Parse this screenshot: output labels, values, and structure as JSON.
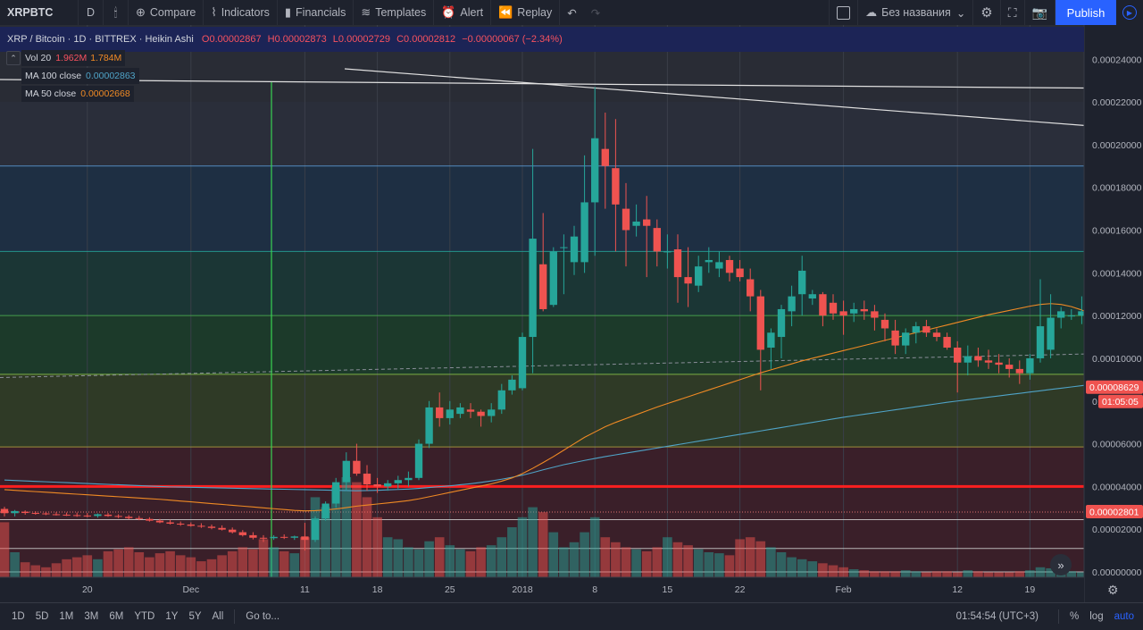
{
  "toolbar": {
    "symbol": "XRPBTC",
    "interval": "D",
    "compare": "Compare",
    "indicators": "Indicators",
    "financials": "Financials",
    "templates": "Templates",
    "alert": "Alert",
    "replay": "Replay",
    "layout_name": "Без названия",
    "publish": "Publish"
  },
  "legend": {
    "pair": "XRP / Bitcoin · 1D · BITTREX · Heikin Ashi",
    "o": "O0.00002867",
    "h": "H0.00002873",
    "l": "L0.00002729",
    "c": "C0.00002812",
    "chg": "−0.00000067 (−2.34%)",
    "vol_name": "Vol 20",
    "vol_v1": "1.962M",
    "vol_v2": "1.784M",
    "ma100_name": "MA 100 close",
    "ma100_val": "0.00002863",
    "ma50_name": "MA 50 close",
    "ma50_val": "0.00002668"
  },
  "bottombar": {
    "ranges": [
      "1D",
      "5D",
      "1M",
      "3M",
      "6M",
      "YTD",
      "1Y",
      "5Y",
      "All"
    ],
    "goto": "Go to...",
    "time": "01:54:54 (UTC+3)",
    "pct": "%",
    "log": "log",
    "auto": "auto"
  },
  "colors": {
    "up": "#26a69a",
    "down": "#ef5350",
    "ma100": "#4fa3c7",
    "ma50": "#f08a24",
    "accent": "#2962ff"
  },
  "chart_data": {
    "type": "candlestick",
    "ylim": [
      -2.5e-06,
      0.000256
    ],
    "yticks": [
      "0.00024000",
      "0.00022000",
      "0.00020000",
      "0.00018000",
      "0.00016000",
      "0.00014000",
      "0.00012000",
      "0.00010000",
      "0.00008000",
      "0.00006000",
      "0.00004000",
      "0.00002000",
      "0.00000000"
    ],
    "yticks_val": [
      0.00024,
      0.00022,
      0.0002,
      0.00018,
      0.00016,
      0.00014,
      0.00012,
      0.0001,
      8e-05,
      6e-05,
      4e-05,
      2e-05,
      0.0
    ],
    "xticks": [
      {
        "label": "20",
        "i": 8
      },
      {
        "label": "Dec",
        "i": 18
      },
      {
        "label": "11",
        "i": 29
      },
      {
        "label": "18",
        "i": 36
      },
      {
        "label": "25",
        "i": 43
      },
      {
        "label": "2018",
        "i": 50
      },
      {
        "label": "8",
        "i": 57
      },
      {
        "label": "15",
        "i": 64
      },
      {
        "label": "22",
        "i": 71
      },
      {
        "label": "Feb",
        "i": 81
      },
      {
        "label": "12",
        "i": 92
      },
      {
        "label": "19",
        "i": 99
      }
    ],
    "last_price_label": "0.00008629",
    "last_price": 8.629e-05,
    "countdown": "01:05:05",
    "level_label": "0.00002801",
    "level_price": 2.801e-05,
    "fib_levels": [
      0.00019,
      0.00015,
      0.00012,
      9.25e-05,
      5.85e-05,
      4e-05,
      2.45e-05,
      1.1e-05,
      0.0
    ],
    "zones": [
      {
        "from": 0.00022,
        "to": 0.00019,
        "color": "#2a2e3a"
      },
      {
        "from": 0.00019,
        "to": 0.00015,
        "color": "#1e2f43"
      },
      {
        "from": 0.00015,
        "to": 0.00012,
        "color": "#1b3635"
      },
      {
        "from": 0.00012,
        "to": 9.25e-05,
        "color": "#1c3a2a"
      },
      {
        "from": 9.25e-05,
        "to": 5.85e-05,
        "color": "#2f3a26"
      },
      {
        "from": 5.85e-05,
        "to": -2.5e-06,
        "color": "#3a1f29"
      }
    ],
    "ohlc": [
      [
        2.95e-05,
        3.05e-05,
        2.6e-05,
        2.75e-05
      ],
      [
        2.75e-05,
        2.9e-05,
        2.6e-05,
        2.85e-05
      ],
      [
        2.82e-05,
        2.88e-05,
        2.68e-05,
        2.76e-05
      ],
      [
        2.76e-05,
        2.84e-05,
        2.68e-05,
        2.74e-05
      ],
      [
        2.74e-05,
        2.82e-05,
        2.66e-05,
        2.7e-05
      ],
      [
        2.7e-05,
        2.8e-05,
        2.64e-05,
        2.68e-05
      ],
      [
        2.68e-05,
        2.78e-05,
        2.62e-05,
        2.66e-05
      ],
      [
        2.66e-05,
        2.78e-05,
        2.58e-05,
        2.64e-05
      ],
      [
        2.64e-05,
        2.76e-05,
        2.56e-05,
        2.62e-05
      ],
      [
        2.62e-05,
        2.74e-05,
        2.54e-05,
        2.7e-05
      ],
      [
        2.68e-05,
        2.76e-05,
        2.58e-05,
        2.62e-05
      ],
      [
        2.62e-05,
        2.7e-05,
        2.52e-05,
        2.58e-05
      ],
      [
        2.58e-05,
        2.66e-05,
        2.46e-05,
        2.52e-05
      ],
      [
        2.52e-05,
        2.62e-05,
        2.42e-05,
        2.48e-05
      ],
      [
        2.48e-05,
        2.56e-05,
        2.36e-05,
        2.4e-05
      ],
      [
        2.4e-05,
        2.48e-05,
        2.28e-05,
        2.32e-05
      ],
      [
        2.32e-05,
        2.44e-05,
        2.22e-05,
        2.26e-05
      ],
      [
        2.26e-05,
        2.36e-05,
        2.16e-05,
        2.22e-05
      ],
      [
        2.22e-05,
        2.32e-05,
        2.12e-05,
        2.16e-05
      ],
      [
        2.16e-05,
        2.28e-05,
        2.06e-05,
        2.12e-05
      ],
      [
        2.12e-05,
        2.22e-05,
        2e-05,
        2.06e-05
      ],
      [
        2.06e-05,
        2.18e-05,
        1.94e-05,
        1.98e-05
      ],
      [
        1.98e-05,
        2.08e-05,
        1.8e-05,
        1.86e-05
      ],
      [
        1.86e-05,
        1.96e-05,
        1.66e-05,
        1.72e-05
      ],
      [
        1.72e-05,
        1.86e-05,
        1.52e-05,
        1.6e-05
      ],
      [
        1.6e-05,
        1.72e-05,
        1.4e-05,
        1.58e-05
      ],
      [
        1.58e-05,
        1.72e-05,
        1.5e-05,
        1.64e-05
      ],
      [
        1.64e-05,
        1.76e-05,
        1.54e-05,
        1.6e-05
      ],
      [
        1.6e-05,
        1.7e-05,
        1.5e-05,
        1.66e-05
      ],
      [
        1.66e-05,
        2.3e-05,
        1e-05,
        1.5e-05
      ],
      [
        1.5e-05,
        2.6e-05,
        1.4e-05,
        2.5e-05
      ],
      [
        2.5e-05,
        3.3e-05,
        2.4e-05,
        3.2e-05
      ],
      [
        3.2e-05,
        4.4e-05,
        3e-05,
        4.2e-05
      ],
      [
        4.2e-05,
        5.6e-05,
        3.8e-05,
        5.2e-05
      ],
      [
        5.2e-05,
        6e-05,
        4.5e-05,
        4.6e-05
      ],
      [
        4.6e-05,
        5e-05,
        3.8e-05,
        4.1e-05
      ],
      [
        4.1e-05,
        4.4e-05,
        3.7e-05,
        4e-05
      ],
      [
        4e-05,
        4.3e-05,
        3.8e-05,
        4.15e-05
      ],
      [
        4.15e-05,
        4.5e-05,
        3.9e-05,
        4.3e-05
      ],
      [
        4.3e-05,
        4.7e-05,
        4e-05,
        4.4e-05
      ],
      [
        4.4e-05,
        6.2e-05,
        4.3e-05,
        6e-05
      ],
      [
        6e-05,
        8e-05,
        5.8e-05,
        7.7e-05
      ],
      [
        7.7e-05,
        8.4e-05,
        6.8e-05,
        7.2e-05
      ],
      [
        7.2e-05,
        8e-05,
        6.9e-05,
        7.6e-05
      ],
      [
        7.4e-05,
        7.9e-05,
        7.2e-05,
        7.7e-05
      ],
      [
        7.6e-05,
        7.9e-05,
        7.2e-05,
        7.5e-05
      ],
      [
        7.5e-05,
        7.6e-05,
        6.8e-05,
        7.3e-05
      ],
      [
        7.3e-05,
        7.9e-05,
        7e-05,
        7.6e-05
      ],
      [
        7.6e-05,
        8.8e-05,
        7.4e-05,
        8.5e-05
      ],
      [
        8.5e-05,
        9.2e-05,
        8.3e-05,
        9e-05
      ],
      [
        8.6e-05,
        0.000112,
        8.5e-05,
        0.00011
      ],
      [
        0.00011,
        0.000198,
        9.3e-05,
        0.000156
      ],
      [
        0.000144,
        0.000168,
        0.000122,
        0.000123
      ],
      [
        0.000125,
        0.000152,
        0.000124,
        0.00015
      ],
      [
        0.000152,
        0.000158,
        0.00013,
        0.000152
      ],
      [
        0.000145,
        0.000162,
        0.000139,
        0.000157
      ],
      [
        0.000145,
        0.000195,
        0.00014,
        0.000173
      ],
      [
        0.000173,
        0.000227,
        0.000148,
        0.000203
      ],
      [
        0.000198,
        0.000215,
        0.00017,
        0.00019
      ],
      [
        0.000189,
        0.000212,
        0.00015,
        0.000172
      ],
      [
        0.00017,
        0.000182,
        0.000143,
        0.00016
      ],
      [
        0.000162,
        0.000172,
        0.000157,
        0.000164
      ],
      [
        0.000165,
        0.000176,
        0.000138,
        0.000162
      ],
      [
        0.000161,
        0.000165,
        0.000143,
        0.00015
      ],
      [
        0.00015,
        0.000158,
        0.000142,
        0.00015
      ],
      [
        0.000151,
        0.000158,
        0.000126,
        0.000138
      ],
      [
        0.000138,
        0.000152,
        0.000124,
        0.000135
      ],
      [
        0.000134,
        0.000148,
        0.000131,
        0.000143
      ],
      [
        0.000145,
        0.000152,
        0.00014,
        0.000146
      ],
      [
        0.000142,
        0.00015,
        0.000138,
        0.000145
      ],
      [
        0.000146,
        0.000148,
        0.000136,
        0.00014
      ],
      [
        0.000142,
        0.000146,
        0.000136,
        0.000138
      ],
      [
        0.000137,
        0.000142,
        0.000122,
        0.000129
      ],
      [
        0.000129,
        0.000132,
        8.5e-05,
        0.000104
      ],
      [
        0.000105,
        0.000114,
        9.5e-05,
        0.000112
      ],
      [
        0.00011,
        0.000125,
        0.0001,
        0.000123
      ],
      [
        0.000122,
        0.000134,
        0.000115,
        0.000129
      ],
      [
        0.00013,
        0.000148,
        0.00012,
        0.000141
      ],
      [
        0.000128,
        0.000132,
        0.000125,
        0.00013
      ],
      [
        0.00013,
        0.000131,
        0.000115,
        0.00012
      ],
      [
        0.000126,
        0.00013,
        0.000118,
        0.000121
      ],
      [
        0.000122,
        0.000127,
        0.000111,
        0.00012
      ],
      [
        0.000121,
        0.000126,
        0.000117,
        0.000123
      ],
      [
        0.000123,
        0.000127,
        0.000118,
        0.000122
      ],
      [
        0.000122,
        0.000125,
        0.000113,
        0.000119
      ],
      [
        0.000118,
        0.000121,
        0.000108,
        0.000114
      ],
      [
        0.000113,
        0.000118,
        0.000102,
        0.000106
      ],
      [
        0.000106,
        0.000114,
        0.000102,
        0.000112
      ],
      [
        0.000112,
        0.000117,
        0.000107,
        0.000115
      ],
      [
        0.000115,
        0.000118,
        0.00011,
        0.000112
      ],
      [
        0.000112,
        0.000114,
        0.000108,
        0.00011
      ],
      [
        0.00011,
        0.000112,
        0.000104,
        0.000105
      ],
      [
        0.000105,
        0.000108,
        8.4e-05,
        9.8e-05
      ],
      [
        9.8e-05,
        0.000106,
        9.2e-05,
        0.000101
      ],
      [
        0.000101,
        0.000105,
        9.6e-05,
        9.9e-05
      ],
      [
        9.9e-05,
        0.000104,
        9.5e-05,
        9.8e-05
      ],
      [
        9.8e-05,
        0.000102,
        9.3e-05,
        9.7e-05
      ],
      [
        9.7e-05,
        0.0001,
        9.1e-05,
        9.5e-05
      ],
      [
        9.5e-05,
        9.9e-05,
        8.8e-05,
        9.3e-05
      ],
      [
        9.3e-05,
        0.000102,
        9e-05,
        0.0001
      ],
      [
        0.0001,
        0.000137,
        9.8e-05,
        0.000115
      ],
      [
        0.000104,
        0.00013,
        0.0001,
        0.000119
      ],
      [
        0.000119,
        0.000124,
        0.000114,
        0.000122
      ],
      [
        0.00012,
        0.000123,
        0.000118,
        0.00012
      ],
      [
        0.00012,
        0.000129,
        0.000116,
        0.000122
      ]
    ],
    "ma100": [
      4.3e-05,
      4.28e-05,
      4.26e-05,
      4.24e-05,
      4.22e-05,
      4.2e-05,
      4.18e-05,
      4.16e-05,
      4.14e-05,
      4.12e-05,
      4.1e-05,
      4.08e-05,
      4.06e-05,
      4.04e-05,
      4.02e-05,
      4e-05,
      3.98e-05,
      3.97e-05,
      3.96e-05,
      3.95e-05,
      3.94e-05,
      3.93e-05,
      3.92e-05,
      3.91e-05,
      3.9e-05,
      3.89e-05,
      3.88e-05,
      3.87e-05,
      3.86e-05,
      3.85e-05,
      3.84e-05,
      3.83e-05,
      3.82e-05,
      3.81e-05,
      3.8e-05,
      3.81e-05,
      3.82e-05,
      3.84e-05,
      3.86e-05,
      3.88e-05,
      3.91e-05,
      3.95e-05,
      3.99e-05,
      4.03e-05,
      4.08e-05,
      4.13e-05,
      4.19e-05,
      4.26e-05,
      4.34e-05,
      4.43e-05,
      4.53e-05,
      4.65e-05,
      4.78e-05,
      4.9e-05,
      5.02e-05,
      5.12e-05,
      5.22e-05,
      5.31e-05,
      5.4e-05,
      5.48e-05,
      5.56e-05,
      5.64e-05,
      5.72e-05,
      5.8e-05,
      5.88e-05,
      5.96e-05,
      6.04e-05,
      6.12e-05,
      6.2e-05,
      6.28e-05,
      6.36e-05,
      6.44e-05,
      6.52e-05,
      6.6e-05,
      6.68e-05,
      6.76e-05,
      6.84e-05,
      6.92e-05,
      7e-05,
      7.08e-05,
      7.16e-05,
      7.24e-05,
      7.31e-05,
      7.38e-05,
      7.45e-05,
      7.52e-05,
      7.59e-05,
      7.66e-05,
      7.73e-05,
      7.8e-05,
      7.87e-05,
      7.94e-05,
      8e-05,
      8.06e-05,
      8.12e-05,
      8.18e-05,
      8.24e-05,
      8.3e-05,
      8.36e-05,
      8.42e-05,
      8.48e-05,
      8.54e-05,
      8.6e-05,
      8.66e-05,
      8.72e-05,
      8.78e-05
    ],
    "ma50": [
      3.85e-05,
      3.82e-05,
      3.79e-05,
      3.76e-05,
      3.73e-05,
      3.7e-05,
      3.67e-05,
      3.64e-05,
      3.61e-05,
      3.58e-05,
      3.55e-05,
      3.52e-05,
      3.49e-05,
      3.46e-05,
      3.43e-05,
      3.4e-05,
      3.36e-05,
      3.32e-05,
      3.28e-05,
      3.24e-05,
      3.2e-05,
      3.16e-05,
      3.12e-05,
      3.08e-05,
      3.04e-05,
      3e-05,
      2.96e-05,
      2.92e-05,
      2.88e-05,
      2.86e-05,
      2.87e-05,
      2.9e-05,
      2.95e-05,
      3.01e-05,
      3.08e-05,
      3.13e-05,
      3.18e-05,
      3.23e-05,
      3.28e-05,
      3.34e-05,
      3.42e-05,
      3.52e-05,
      3.62e-05,
      3.72e-05,
      3.82e-05,
      3.92e-05,
      4.02e-05,
      4.12e-05,
      4.25e-05,
      4.4e-05,
      4.6e-05,
      4.85e-05,
      5.12e-05,
      5.4e-05,
      5.7e-05,
      6e-05,
      6.3e-05,
      6.55e-05,
      6.8e-05,
      7e-05,
      7.18e-05,
      7.36e-05,
      7.54e-05,
      7.72e-05,
      7.88e-05,
      8.04e-05,
      8.2e-05,
      8.36e-05,
      8.52e-05,
      8.68e-05,
      8.84e-05,
      9e-05,
      9.16e-05,
      9.32e-05,
      9.46e-05,
      9.6e-05,
      9.74e-05,
      9.88e-05,
      0.0001,
      0.0001012,
      0.0001024,
      0.0001036,
      0.0001048,
      0.000106,
      0.0001072,
      0.0001084,
      0.0001096,
      0.0001108,
      0.000112,
      0.0001132,
      0.0001144,
      0.0001156,
      0.0001168,
      0.000118,
      0.0001192,
      0.0001204,
      0.0001214,
      0.0001224,
      0.0001234,
      0.0001244,
      0.0001252,
      0.0001256,
      0.0001252,
      0.0001242,
      0.0001226,
      0.0001206
    ],
    "volume": [
      0.55,
      0.25,
      0.15,
      0.12,
      0.1,
      0.14,
      0.18,
      0.2,
      0.22,
      0.18,
      0.26,
      0.28,
      0.3,
      0.25,
      0.2,
      0.24,
      0.26,
      0.22,
      0.2,
      0.16,
      0.18,
      0.22,
      0.26,
      0.3,
      0.28,
      0.38,
      0.3,
      0.26,
      0.24,
      0.4,
      0.8,
      0.7,
      0.9,
      1.0,
      0.95,
      0.8,
      0.6,
      0.4,
      0.38,
      0.3,
      0.28,
      0.36,
      0.4,
      0.32,
      0.28,
      0.26,
      0.3,
      0.32,
      0.4,
      0.5,
      0.6,
      0.7,
      0.65,
      0.45,
      0.3,
      0.35,
      0.45,
      0.6,
      0.4,
      0.35,
      0.3,
      0.28,
      0.26,
      0.3,
      0.4,
      0.35,
      0.32,
      0.28,
      0.25,
      0.24,
      0.22,
      0.38,
      0.4,
      0.36,
      0.3,
      0.25,
      0.2,
      0.18,
      0.16,
      0.14,
      0.12,
      0.1,
      0.08,
      0.07,
      0.06,
      0.06,
      0.06,
      0.07,
      0.06,
      0.05,
      0.06,
      0.06,
      0.05,
      0.07,
      0.06,
      0.05,
      0.05,
      0.05,
      0.06,
      0.07,
      0.1,
      0.09,
      0.08,
      0.06,
      0.05
    ]
  }
}
